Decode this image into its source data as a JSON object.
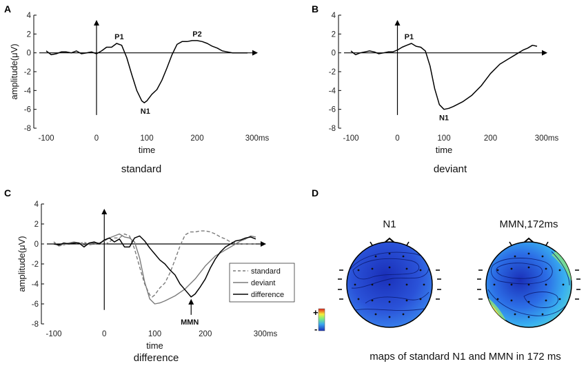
{
  "panels": {
    "A": {
      "letter": "A",
      "caption": "standard"
    },
    "B": {
      "letter": "B",
      "caption": "deviant"
    },
    "C": {
      "letter": "C",
      "caption": "difference"
    },
    "D": {
      "letter": "D",
      "caption": "maps of standard N1 and MMN in 172 ms",
      "map1_title": "N1",
      "map2_title": "MMN,172ms",
      "colorbar_plus": "+",
      "colorbar_minus": "-"
    }
  },
  "colors": {
    "standard": "#7a7a7a",
    "deviant": "#7a7a7a",
    "difference": "#000000",
    "map_dark": "#1a2fb8",
    "map_mid": "#2a6ee8",
    "map_light": "#37a8f0"
  },
  "chart_data": [
    {
      "id": "A",
      "type": "line",
      "title": "standard",
      "xlabel": "time",
      "ylabel": "amplitude(μV)",
      "xlim": [
        -100,
        300
      ],
      "ylim": [
        -8,
        4
      ],
      "xticks": [
        -100,
        0,
        100,
        200,
        300
      ],
      "xtick_labels": [
        "-100",
        "0",
        "100",
        "200",
        "300ms"
      ],
      "yticks": [
        -8,
        -6,
        -4,
        -2,
        0,
        2,
        4
      ],
      "ytick_labels": [
        "-8",
        "-6",
        "-4",
        "-2",
        "0",
        "2",
        "4"
      ],
      "series": [
        {
          "name": "standard",
          "style": "solid",
          "x": [
            -100,
            -90,
            -80,
            -70,
            -60,
            -50,
            -40,
            -30,
            -20,
            -10,
            0,
            10,
            20,
            30,
            40,
            50,
            60,
            70,
            80,
            90,
            95,
            100,
            110,
            120,
            130,
            140,
            150,
            160,
            170,
            180,
            190,
            200,
            210,
            220,
            230,
            240,
            250,
            260,
            270,
            280,
            290,
            300
          ],
          "y": [
            0.2,
            -0.2,
            -0.1,
            0.1,
            0.1,
            0.0,
            0.2,
            -0.1,
            0.0,
            0.1,
            -0.1,
            0.2,
            0.6,
            0.6,
            1.0,
            0.8,
            -0.5,
            -2.3,
            -4.0,
            -5.1,
            -5.3,
            -5.1,
            -4.4,
            -3.9,
            -2.9,
            -1.6,
            -0.2,
            0.9,
            1.2,
            1.2,
            1.3,
            1.3,
            1.2,
            1.0,
            0.7,
            0.5,
            0.2,
            0.1,
            0.0,
            0.0,
            0.0,
            0.0
          ]
        }
      ],
      "annotations": [
        {
          "text": "P1",
          "x": 45,
          "y": 1.0
        },
        {
          "text": "N1",
          "x": 97,
          "y": -5.3
        },
        {
          "text": "P2",
          "x": 200,
          "y": 1.3
        }
      ]
    },
    {
      "id": "B",
      "type": "line",
      "title": "deviant",
      "xlabel": "time",
      "ylabel": "",
      "xlim": [
        -100,
        300
      ],
      "ylim": [
        -8,
        4
      ],
      "xticks": [
        -100,
        0,
        100,
        200,
        300
      ],
      "xtick_labels": [
        "-100",
        "0",
        "100",
        "200",
        "300ms"
      ],
      "yticks": [
        -8,
        -6,
        -4,
        -2,
        0,
        2,
        4
      ],
      "ytick_labels": [
        "-8",
        "-6",
        "-4",
        "-2",
        "0",
        "2",
        "4"
      ],
      "series": [
        {
          "name": "deviant",
          "style": "solid",
          "x": [
            -100,
            -90,
            -80,
            -70,
            -60,
            -50,
            -40,
            -30,
            -20,
            -10,
            0,
            10,
            20,
            30,
            40,
            50,
            60,
            70,
            80,
            90,
            100,
            110,
            120,
            140,
            160,
            180,
            200,
            220,
            240,
            250,
            260,
            270,
            280,
            290,
            300
          ],
          "y": [
            0.2,
            -0.2,
            0.0,
            0.1,
            0.2,
            0.1,
            -0.1,
            0.0,
            0.1,
            0.1,
            0.3,
            0.6,
            0.8,
            1.0,
            0.7,
            0.6,
            0.2,
            -1.4,
            -3.8,
            -5.5,
            -6.0,
            -5.9,
            -5.7,
            -5.2,
            -4.5,
            -3.5,
            -2.2,
            -1.2,
            -0.6,
            -0.3,
            0.0,
            0.3,
            0.5,
            0.8,
            0.7
          ]
        }
      ],
      "annotations": [
        {
          "text": "P1",
          "x": 25,
          "y": 1.0
        },
        {
          "text": "N1",
          "x": 100,
          "y": -6.0
        }
      ]
    },
    {
      "id": "C",
      "type": "line",
      "title": "difference",
      "xlabel": "time",
      "ylabel": "amplitude(μV)",
      "xlim": [
        -100,
        300
      ],
      "ylim": [
        -8,
        4
      ],
      "xticks": [
        -100,
        0,
        100,
        200,
        300
      ],
      "xtick_labels": [
        "-100",
        "0",
        "100",
        "200",
        "300ms"
      ],
      "yticks": [
        -8,
        -6,
        -4,
        -2,
        0,
        2,
        4
      ],
      "ytick_labels": [
        "-8",
        "-6",
        "-4",
        "-2",
        "0",
        "2",
        "4"
      ],
      "legend": {
        "position": "right",
        "entries": [
          "standard",
          "deviant",
          "difference"
        ]
      },
      "series": [
        {
          "name": "standard",
          "style": "dashed",
          "x": [
            -100,
            -90,
            -80,
            -70,
            -60,
            -50,
            -40,
            -30,
            -20,
            -10,
            0,
            10,
            20,
            30,
            40,
            50,
            60,
            70,
            80,
            90,
            95,
            100,
            110,
            120,
            130,
            140,
            150,
            160,
            170,
            180,
            190,
            200,
            210,
            220,
            230,
            240,
            250,
            260,
            270,
            280,
            290,
            300
          ],
          "y": [
            0.2,
            -0.2,
            -0.1,
            0.1,
            0.1,
            0.0,
            0.2,
            -0.1,
            0.0,
            0.1,
            -0.1,
            0.2,
            0.6,
            0.6,
            1.0,
            0.8,
            -0.5,
            -2.3,
            -4.0,
            -5.1,
            -5.3,
            -5.1,
            -4.4,
            -3.9,
            -2.9,
            -1.6,
            -0.2,
            0.9,
            1.2,
            1.2,
            1.3,
            1.3,
            1.2,
            1.0,
            0.7,
            0.5,
            0.2,
            0.1,
            0.0,
            0.0,
            0.0,
            0.0
          ]
        },
        {
          "name": "deviant",
          "style": "solid",
          "x": [
            -100,
            -90,
            -80,
            -70,
            -60,
            -50,
            -40,
            -30,
            -20,
            -10,
            0,
            10,
            20,
            30,
            40,
            50,
            60,
            70,
            80,
            90,
            100,
            110,
            120,
            140,
            160,
            180,
            200,
            220,
            240,
            250,
            260,
            270,
            280,
            290,
            300
          ],
          "y": [
            0.2,
            -0.2,
            0.0,
            0.1,
            0.2,
            0.1,
            -0.1,
            0.0,
            0.1,
            0.1,
            0.3,
            0.6,
            0.8,
            1.0,
            0.7,
            0.6,
            0.2,
            -1.4,
            -3.8,
            -5.5,
            -6.0,
            -5.9,
            -5.7,
            -5.2,
            -4.5,
            -3.5,
            -2.2,
            -1.2,
            -0.6,
            -0.3,
            0.0,
            0.3,
            0.5,
            0.8,
            0.7
          ]
        },
        {
          "name": "difference",
          "style": "solid",
          "x": [
            -100,
            -90,
            -80,
            -70,
            -60,
            -50,
            -40,
            -30,
            -20,
            -10,
            0,
            10,
            20,
            30,
            40,
            50,
            60,
            70,
            80,
            90,
            100,
            110,
            120,
            130,
            140,
            150,
            160,
            172,
            180,
            190,
            200,
            210,
            220,
            230,
            240,
            250,
            260,
            270,
            280,
            290,
            300
          ],
          "y": [
            0.0,
            -0.1,
            0.1,
            0.0,
            0.1,
            0.1,
            -0.3,
            0.1,
            0.2,
            0.0,
            0.4,
            0.6,
            0.2,
            0.5,
            -0.3,
            -0.3,
            0.6,
            0.8,
            0.3,
            -0.4,
            -1.0,
            -1.6,
            -2.0,
            -2.6,
            -3.1,
            -4.0,
            -4.6,
            -5.3,
            -5.0,
            -4.3,
            -3.5,
            -2.4,
            -1.5,
            -0.8,
            -0.3,
            0.0,
            0.3,
            0.4,
            0.6,
            0.7,
            0.5
          ]
        }
      ],
      "annotations": [
        {
          "text": "MMN",
          "x": 172,
          "y": -5.3,
          "arrow": true
        }
      ]
    }
  ]
}
